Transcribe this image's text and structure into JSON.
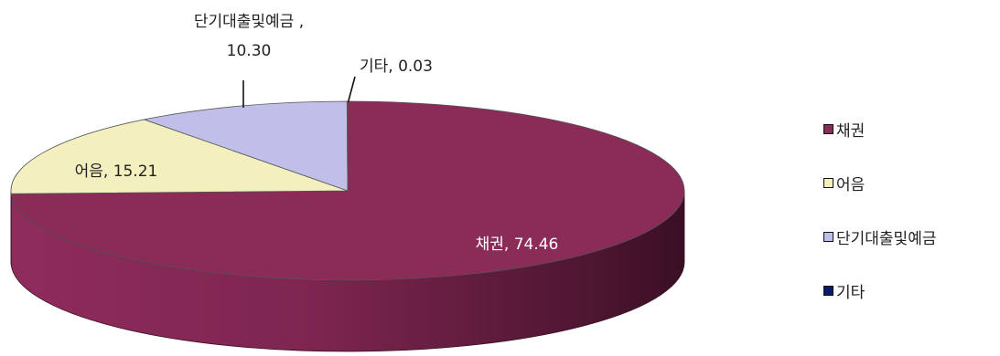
{
  "chart_data": {
    "type": "pie",
    "style": "3d",
    "categories": [
      "채권",
      "어음",
      "단기대출및예금",
      "기타"
    ],
    "values": [
      74.46,
      15.21,
      10.3,
      0.03
    ],
    "data_labels": [
      "채권, 74.46",
      "어음, 15.21",
      "단기대출및예금, 10.30",
      "기타, 0.03"
    ],
    "colors": [
      "#8b2b58",
      "#f3efbf",
      "#bfbfea",
      "#0a1a6a"
    ],
    "legend": "right",
    "title": ""
  }
}
